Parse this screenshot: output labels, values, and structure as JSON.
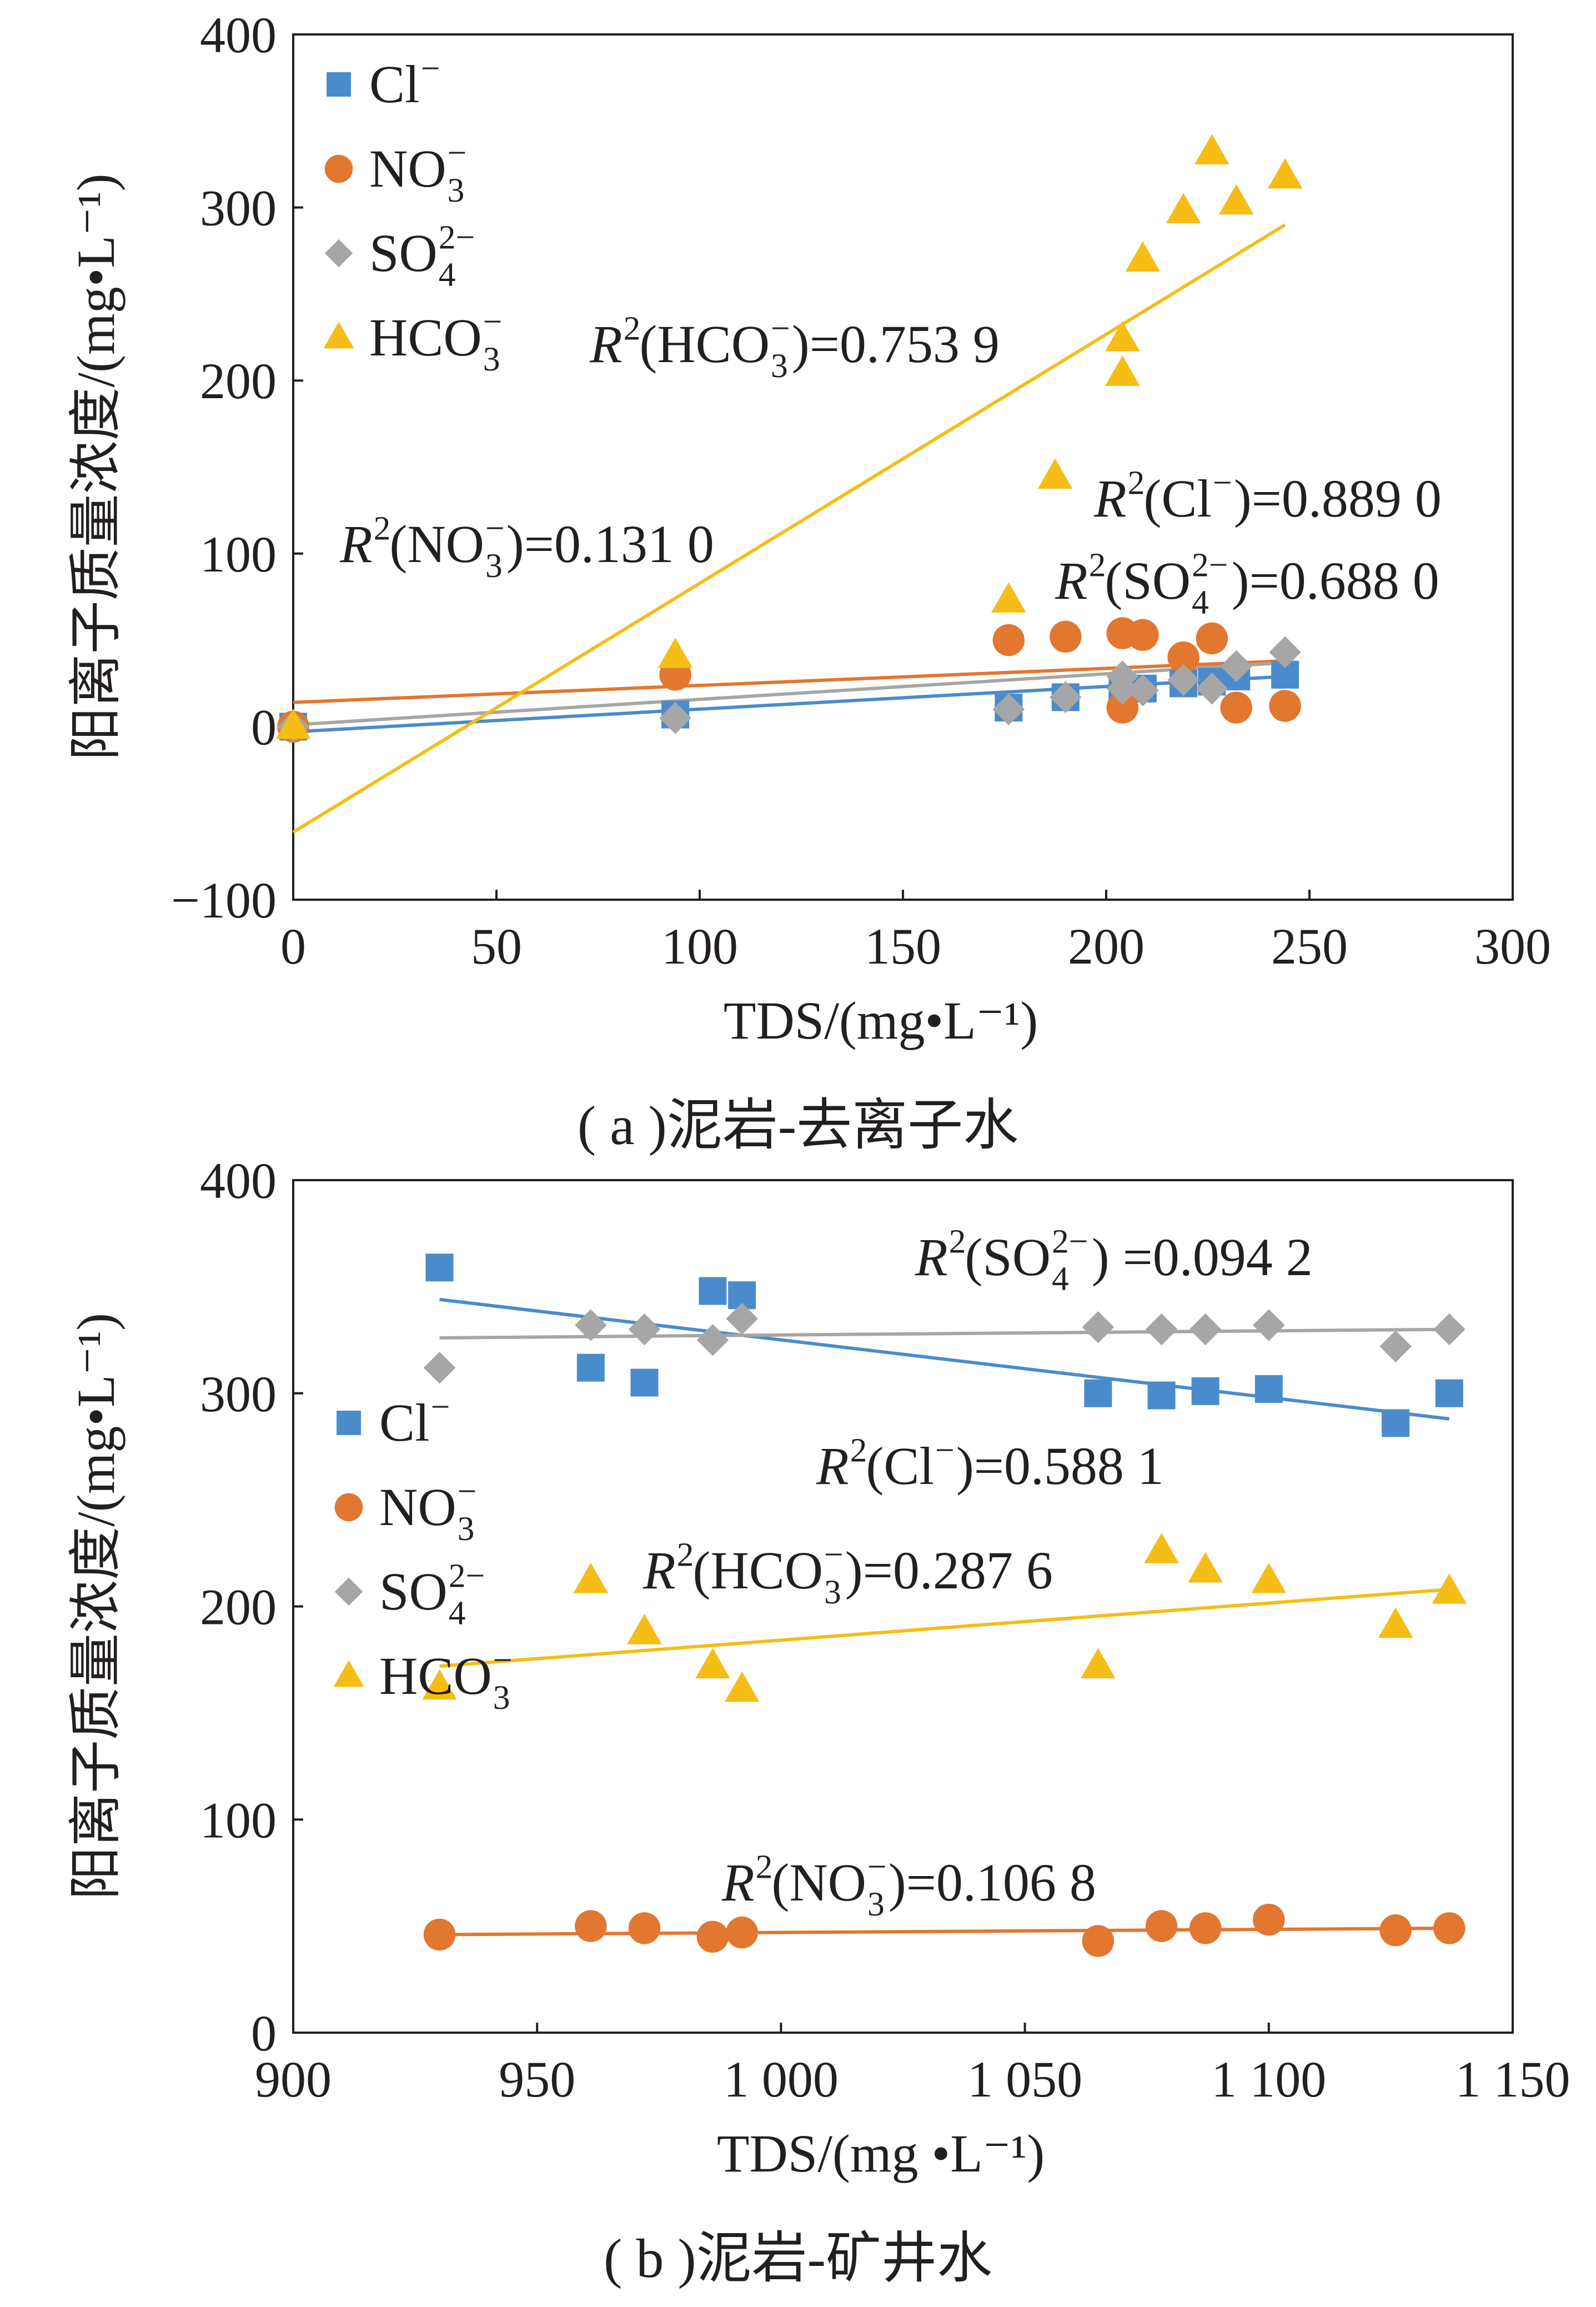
{
  "colors": {
    "Cl": "#4a8ccb",
    "NO3": "#e2772f",
    "SO4": "#a6a6a6",
    "HCO3": "#f5bd16",
    "axis": "#231f20"
  },
  "chart_data": [
    {
      "type": "scatter",
      "caption": "( a )泥岩-去离子水",
      "xlabel": "TDS/(mg•L⁻¹)",
      "ylabel": "阳离子质量浓度/(mg•L⁻¹)",
      "xlim": [
        0,
        300
      ],
      "ylim": [
        -100,
        400
      ],
      "xticks": [
        0,
        50,
        100,
        150,
        200,
        250,
        300
      ],
      "yticks": [
        -100,
        0,
        100,
        200,
        300,
        400
      ],
      "xtick_labels": [
        "0",
        "50",
        "100",
        "150",
        "200",
        "250",
        "300"
      ],
      "ytick_labels": [
        "−100",
        "0",
        "100",
        "200",
        "300",
        "400"
      ],
      "legend_position": "top-left",
      "series": [
        {
          "key": "Cl",
          "marker": "square",
          "legend": {
            "base": "Cl",
            "sup": "−",
            "sub": ""
          },
          "points": [
            [
              0,
              0
            ],
            [
              94,
              7
            ],
            [
              176,
              11
            ],
            [
              190,
              17
            ],
            [
              204,
              20
            ],
            [
              209,
              22
            ],
            [
              219,
              25
            ],
            [
              226,
              26
            ],
            [
              232,
              29
            ],
            [
              244,
              30
            ]
          ],
          "fit": {
            "x": [
              0,
              244
            ],
            "y": [
              -3,
              29
            ]
          },
          "r2": {
            "label": "R",
            "sup": "2",
            "open": "(Cl",
            "ion_sup": "−",
            "ion_sub": "",
            "close": ")=0.889 0"
          }
        },
        {
          "key": "NO3",
          "marker": "circle",
          "legend": {
            "base": "NO",
            "sup": "−",
            "sub": "3"
          },
          "points": [
            [
              0,
              0
            ],
            [
              94,
              30
            ],
            [
              176,
              50
            ],
            [
              190,
              52
            ],
            [
              204,
              54
            ],
            [
              204,
              11
            ],
            [
              209,
              53
            ],
            [
              219,
              40
            ],
            [
              226,
              51
            ],
            [
              232,
              11
            ],
            [
              244,
              12
            ]
          ],
          "fit": {
            "x": [
              0,
              244
            ],
            "y": [
              14,
              38
            ]
          },
          "r2": {
            "label": "R",
            "sup": "2",
            "open": "(NO",
            "ion_sup": "−",
            "ion_sub": "3",
            "close": ")=0.131 0"
          }
        },
        {
          "key": "SO4",
          "marker": "diamond",
          "legend": {
            "base": "SO",
            "sup": "2−",
            "sub": "4"
          },
          "points": [
            [
              0,
              0
            ],
            [
              94,
              5
            ],
            [
              176,
              10
            ],
            [
              190,
              17
            ],
            [
              204,
              29
            ],
            [
              204,
              22
            ],
            [
              209,
              21
            ],
            [
              219,
              27
            ],
            [
              226,
              22
            ],
            [
              232,
              35
            ],
            [
              244,
              43
            ]
          ],
          "fit": {
            "x": [
              0,
              244
            ],
            "y": [
              1,
              37
            ]
          },
          "r2": {
            "label": "R",
            "sup": "2",
            "open": "(SO",
            "ion_sup": "2−",
            "ion_sub": "4",
            "close": ")=0.688 0"
          }
        },
        {
          "key": "HCO3",
          "marker": "triangle",
          "legend": {
            "base": "HCO",
            "sup": "−",
            "sub": "3"
          },
          "points": [
            [
              0,
              0
            ],
            [
              94,
              41
            ],
            [
              176,
              73
            ],
            [
              204,
              224
            ],
            [
              204,
              204
            ],
            [
              209,
              270
            ],
            [
              219,
              298
            ],
            [
              226,
              332
            ],
            [
              232,
              303
            ],
            [
              244,
              318
            ]
          ],
          "fit": {
            "x": [
              0,
              244
            ],
            "y": [
              -61,
              290
            ]
          },
          "r2": {
            "label": "R",
            "sup": "2",
            "open": "(HCO",
            "ion_sup": "−",
            "ion_sub": "3",
            "close": ")=0.753 9"
          }
        }
      ]
    },
    {
      "type": "scatter",
      "caption": "( b )泥岩-矿井水",
      "xlabel": "TDS/(mg •L⁻¹)",
      "ylabel": "阳离子质量浓度/(mg•L⁻¹)",
      "xlim": [
        900,
        1150
      ],
      "ylim": [
        0,
        400
      ],
      "xticks": [
        900,
        950,
        1000,
        1050,
        1100,
        1150
      ],
      "yticks": [
        0,
        100,
        200,
        300,
        400
      ],
      "xtick_labels": [
        "900",
        "950",
        "1 000",
        "1 050",
        "1 100",
        "1 150"
      ],
      "ytick_labels": [
        "0",
        "100",
        "200",
        "300",
        "400"
      ],
      "legend_position": "center-left",
      "series": [
        {
          "key": "Cl",
          "marker": "square",
          "legend": {
            "base": "Cl",
            "sup": "−",
            "sub": ""
          },
          "points": [
            [
              930,
              359
            ],
            [
              961,
              312
            ],
            [
              972,
              305
            ],
            [
              986,
              348
            ],
            [
              992,
              346
            ],
            [
              1065,
              300
            ],
            [
              1078,
              299
            ],
            [
              1087,
              301
            ],
            [
              1100,
              302
            ],
            [
              1126,
              286
            ],
            [
              1137,
              300
            ]
          ],
          "fit": {
            "x": [
              930,
              1137
            ],
            "y": [
              344,
              288
            ]
          },
          "r2": {
            "label": "R",
            "sup": "2",
            "open": "(Cl",
            "ion_sup": "−",
            "ion_sub": "",
            "close": ")=0.588 1"
          }
        },
        {
          "key": "NO3",
          "marker": "circle",
          "legend": {
            "base": "NO",
            "sup": "−",
            "sub": "3"
          },
          "points": [
            [
              930,
              46
            ],
            [
              961,
              50
            ],
            [
              972,
              49
            ],
            [
              986,
              45
            ],
            [
              992,
              47
            ],
            [
              1065,
              43
            ],
            [
              1078,
              50
            ],
            [
              1087,
              49
            ],
            [
              1100,
              53
            ],
            [
              1126,
              48
            ],
            [
              1137,
              49
            ]
          ],
          "fit": {
            "x": [
              930,
              1137
            ],
            "y": [
              46,
              49
            ]
          },
          "r2": {
            "label": "R",
            "sup": "2",
            "open": "(NO",
            "ion_sup": "−",
            "ion_sub": "3",
            "close": ")=0.106 8"
          }
        },
        {
          "key": "SO4",
          "marker": "diamond",
          "legend": {
            "base": "SO",
            "sup": "2−",
            "sub": "4"
          },
          "points": [
            [
              930,
              312
            ],
            [
              961,
              332
            ],
            [
              972,
              330
            ],
            [
              986,
              325
            ],
            [
              992,
              335
            ],
            [
              1065,
              331
            ],
            [
              1078,
              330
            ],
            [
              1087,
              330
            ],
            [
              1100,
              332
            ],
            [
              1126,
              322
            ],
            [
              1137,
              330
            ]
          ],
          "fit": {
            "x": [
              930,
              1137
            ],
            "y": [
              326,
              330
            ]
          },
          "r2": {
            "label": "R",
            "sup": "2",
            "open": "(SO",
            "ion_sup": "2−",
            "ion_sub": "4",
            "close": ") =0.094 2"
          }
        },
        {
          "key": "HCO3",
          "marker": "triangle",
          "legend": {
            "base": "HCO",
            "sup": "−",
            "sub": "3"
          },
          "points": [
            [
              930,
              162
            ],
            [
              961,
              212
            ],
            [
              972,
              188
            ],
            [
              986,
              172
            ],
            [
              992,
              161
            ],
            [
              1065,
              172
            ],
            [
              1078,
              226
            ],
            [
              1087,
              217
            ],
            [
              1100,
              212
            ],
            [
              1126,
              191
            ],
            [
              1137,
              207
            ]
          ],
          "fit": {
            "x": [
              930,
              1137
            ],
            "y": [
              172,
              208
            ]
          },
          "r2": {
            "label": "R",
            "sup": "2",
            "open": "(HCO",
            "ion_sup": "−",
            "ion_sub": "3",
            "close": ")=0.287 6"
          }
        }
      ]
    }
  ]
}
